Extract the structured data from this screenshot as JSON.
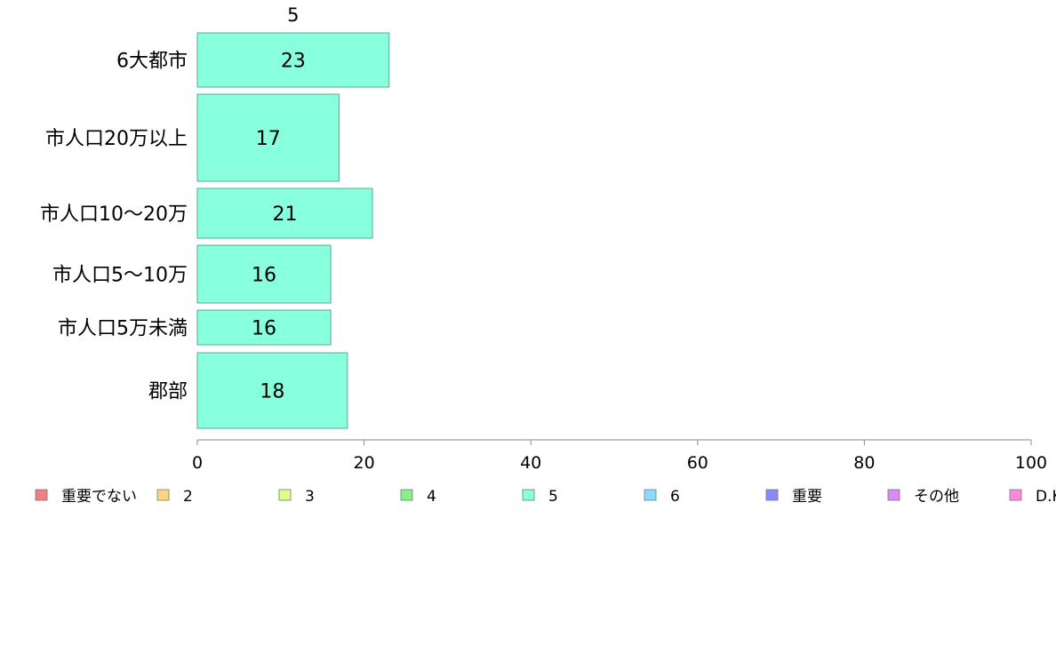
{
  "chart_data": {
    "type": "bar",
    "orientation": "horizontal",
    "stacked": true,
    "series_title": "5",
    "categories": [
      "6大都市",
      "市人口20万以上",
      "市人口10〜20万",
      "市人口5〜10万",
      "市人口5万未満",
      "郡部"
    ],
    "series": [
      {
        "name": "5",
        "values": [
          23,
          17,
          21,
          16,
          16,
          18
        ],
        "color": "#88ffdd"
      }
    ],
    "data_labels": [
      "23",
      "17",
      "21",
      "16",
      "16",
      "18"
    ],
    "xlim": [
      0,
      100
    ],
    "xticks": [
      0,
      20,
      40,
      60,
      80,
      100
    ],
    "grid": false,
    "legend_position": "bottom",
    "legend": [
      {
        "label": "重要でない",
        "color": "#f08080"
      },
      {
        "label": "2",
        "color": "#ffd580"
      },
      {
        "label": "3",
        "color": "#ddff88"
      },
      {
        "label": "4",
        "color": "#88f088"
      },
      {
        "label": "5",
        "color": "#88ffdd"
      },
      {
        "label": "6",
        "color": "#88ddff"
      },
      {
        "label": "重要",
        "color": "#8888ff"
      },
      {
        "label": "その他",
        "color": "#dd88ff"
      },
      {
        "label": "D.K.",
        "color": "#ff88dd"
      }
    ]
  }
}
